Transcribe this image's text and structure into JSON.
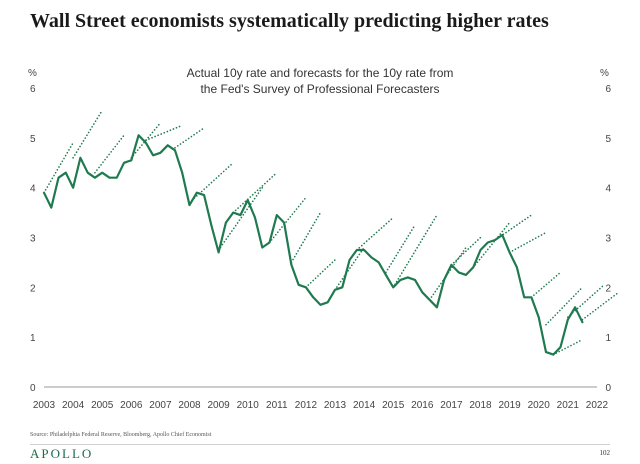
{
  "page": {
    "title": "Wall Street economists systematically predicting higher rates",
    "source": "Source: Philadelphia Federal Reserve, Bloomberg, Apollo Chief Economist",
    "brand": "APOLLO",
    "page_number": "102"
  },
  "colors": {
    "series": "#1f7a50",
    "forecast": "#1f7a50",
    "axis": "#999999",
    "brand": "#1a6b4a"
  },
  "chart_data": {
    "type": "line",
    "subtitle_lines": [
      "Actual 10y rate and forecasts for the 10y rate from",
      "the Fed's Survey of Professional Forecasters"
    ],
    "y_unit_left": "%",
    "y_unit_right": "%",
    "ylim": [
      0,
      6
    ],
    "yticks": [
      0,
      1,
      2,
      3,
      4,
      5,
      6
    ],
    "xlim": [
      2003,
      2022.75
    ],
    "xticks": [
      2003,
      2004,
      2005,
      2006,
      2007,
      2008,
      2009,
      2010,
      2011,
      2012,
      2013,
      2014,
      2015,
      2016,
      2017,
      2018,
      2019,
      2020,
      2021,
      2022
    ],
    "grid": false,
    "series": [
      {
        "style": "solid",
        "x": [
          2003.0,
          2003.25,
          2003.5,
          2003.75,
          2004.0,
          2004.25,
          2004.5,
          2004.75,
          2005.0,
          2005.25,
          2005.5,
          2005.75,
          2006.0,
          2006.25,
          2006.5,
          2006.75,
          2007.0,
          2007.25,
          2007.5,
          2007.75,
          2008.0,
          2008.25,
          2008.5,
          2008.75,
          2009.0,
          2009.25,
          2009.5,
          2009.75,
          2010.0,
          2010.25,
          2010.5,
          2010.75,
          2011.0,
          2011.25,
          2011.5,
          2011.75,
          2012.0,
          2012.25,
          2012.5,
          2012.75,
          2013.0,
          2013.25,
          2013.5,
          2013.75,
          2014.0,
          2014.25,
          2014.5,
          2014.75,
          2015.0,
          2015.25,
          2015.5,
          2015.75,
          2016.0,
          2016.25,
          2016.5,
          2016.75,
          2017.0,
          2017.25,
          2017.5,
          2017.75,
          2018.0,
          2018.25,
          2018.5,
          2018.75,
          2019.0,
          2019.25,
          2019.5,
          2019.75,
          2020.0,
          2020.25,
          2020.5,
          2020.75,
          2021.0,
          2021.25,
          2021.5
        ],
        "values": [
          3.9,
          3.6,
          4.2,
          4.3,
          4.0,
          4.6,
          4.3,
          4.2,
          4.3,
          4.2,
          4.2,
          4.5,
          4.55,
          5.05,
          4.9,
          4.65,
          4.7,
          4.85,
          4.75,
          4.3,
          3.65,
          3.9,
          3.85,
          3.25,
          2.7,
          3.3,
          3.5,
          3.45,
          3.75,
          3.4,
          2.8,
          2.9,
          3.45,
          3.3,
          2.45,
          2.05,
          2.0,
          1.8,
          1.65,
          1.7,
          1.95,
          2.0,
          2.55,
          2.75,
          2.75,
          2.6,
          2.5,
          2.25,
          2.0,
          2.15,
          2.2,
          2.15,
          1.9,
          1.75,
          1.6,
          2.15,
          2.45,
          2.3,
          2.25,
          2.4,
          2.75,
          2.9,
          2.95,
          3.05,
          2.7,
          2.4,
          1.8,
          1.8,
          1.4,
          0.7,
          0.65,
          0.8,
          1.35,
          1.6,
          1.3
        ]
      },
      {
        "style": "dotted",
        "x": [
          2003.0,
          2004.0
        ],
        "values": [
          3.9,
          4.9
        ]
      },
      {
        "style": "dotted",
        "x": [
          2004.0,
          2005.0
        ],
        "values": [
          4.6,
          5.55
        ]
      },
      {
        "style": "dotted",
        "x": [
          2004.75,
          2005.75
        ],
        "values": [
          4.3,
          5.05
        ]
      },
      {
        "style": "dotted",
        "x": [
          2006.0,
          2007.0
        ],
        "values": [
          4.6,
          5.3
        ]
      },
      {
        "style": "dotted",
        "x": [
          2006.5,
          2007.75
        ],
        "values": [
          4.95,
          5.25
        ]
      },
      {
        "style": "dotted",
        "x": [
          2007.5,
          2008.5
        ],
        "values": [
          4.8,
          5.2
        ]
      },
      {
        "style": "dotted",
        "x": [
          2008.0,
          2009.5
        ],
        "values": [
          3.7,
          4.5
        ]
      },
      {
        "style": "dotted",
        "x": [
          2009.0,
          2010.5
        ],
        "values": [
          2.75,
          4.0
        ]
      },
      {
        "style": "dotted",
        "x": [
          2009.5,
          2011.0
        ],
        "values": [
          3.5,
          4.3
        ]
      },
      {
        "style": "dotted",
        "x": [
          2010.75,
          2012.0
        ],
        "values": [
          2.9,
          3.8
        ]
      },
      {
        "style": "dotted",
        "x": [
          2011.5,
          2012.5
        ],
        "values": [
          2.5,
          3.5
        ]
      },
      {
        "style": "dotted",
        "x": [
          2012.0,
          2013.0
        ],
        "values": [
          2.0,
          2.55
        ]
      },
      {
        "style": "dotted",
        "x": [
          2013.0,
          2014.0
        ],
        "values": [
          1.95,
          2.8
        ]
      },
      {
        "style": "dotted",
        "x": [
          2013.75,
          2015.0
        ],
        "values": [
          2.75,
          3.4
        ]
      },
      {
        "style": "dotted",
        "x": [
          2014.75,
          2015.75
        ],
        "values": [
          2.3,
          3.25
        ]
      },
      {
        "style": "dotted",
        "x": [
          2015.0,
          2016.5
        ],
        "values": [
          2.0,
          3.45
        ]
      },
      {
        "style": "dotted",
        "x": [
          2016.25,
          2017.5
        ],
        "values": [
          1.75,
          2.8
        ]
      },
      {
        "style": "dotted",
        "x": [
          2017.0,
          2018.0
        ],
        "values": [
          2.45,
          3.0
        ]
      },
      {
        "style": "dotted",
        "x": [
          2017.75,
          2019.0
        ],
        "values": [
          2.4,
          3.3
        ]
      },
      {
        "style": "dotted",
        "x": [
          2018.5,
          2019.75
        ],
        "values": [
          2.95,
          3.45
        ]
      },
      {
        "style": "dotted",
        "x": [
          2019.0,
          2020.25
        ],
        "values": [
          2.7,
          3.1
        ]
      },
      {
        "style": "dotted",
        "x": [
          2019.75,
          2020.75
        ],
        "values": [
          1.8,
          2.3
        ]
      },
      {
        "style": "dotted",
        "x": [
          2020.25,
          2021.5
        ],
        "values": [
          1.25,
          2.0
        ]
      },
      {
        "style": "dotted",
        "x": [
          2020.5,
          2021.5
        ],
        "values": [
          0.65,
          0.95
        ]
      },
      {
        "style": "dotted",
        "x": [
          2021.0,
          2022.25
        ],
        "values": [
          1.4,
          2.05
        ]
      },
      {
        "style": "dotted",
        "x": [
          2021.5,
          2022.75
        ],
        "values": [
          1.35,
          1.9
        ]
      }
    ]
  }
}
